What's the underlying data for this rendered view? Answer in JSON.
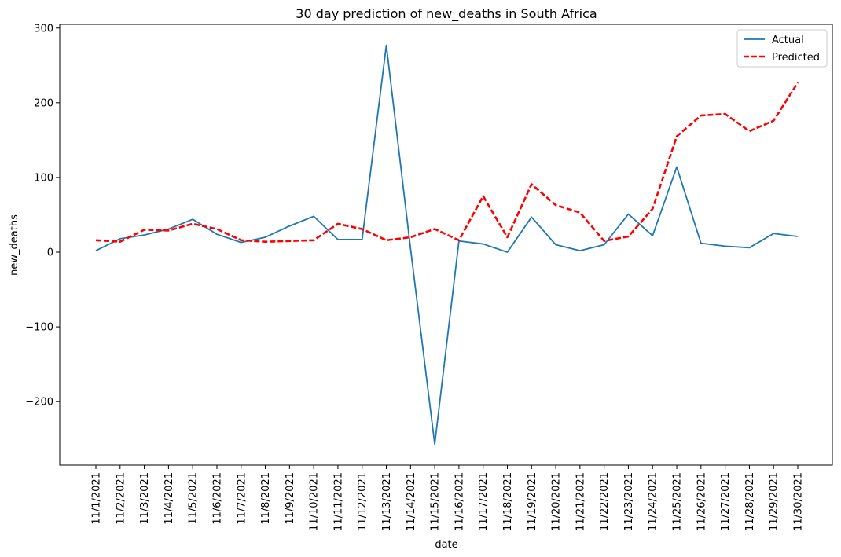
{
  "chart_data": {
    "type": "line",
    "title": "30 day prediction of new_deaths in South Africa",
    "xlabel": "date",
    "ylabel": "new_deaths",
    "ylim": [
      -285,
      305
    ],
    "yticks": [
      -200,
      -100,
      0,
      100,
      200,
      300
    ],
    "ytick_labels": [
      "−200",
      "−100",
      "0",
      "100",
      "200",
      "300"
    ],
    "categories": [
      "11/1/2021",
      "11/2/2021",
      "11/3/2021",
      "11/4/2021",
      "11/5/2021",
      "11/6/2021",
      "11/7/2021",
      "11/8/2021",
      "11/9/2021",
      "11/10/2021",
      "11/11/2021",
      "11/12/2021",
      "11/13/2021",
      "11/14/2021",
      "11/15/2021",
      "11/16/2021",
      "11/17/2021",
      "11/18/2021",
      "11/19/2021",
      "11/20/2021",
      "11/21/2021",
      "11/22/2021",
      "11/23/2021",
      "11/24/2021",
      "11/25/2021",
      "11/26/2021",
      "11/27/2021",
      "11/28/2021",
      "11/29/2021",
      "11/30/2021"
    ],
    "series": [
      {
        "name": "Actual",
        "color": "#1f77b4",
        "style": "solid",
        "values": [
          2,
          18,
          23,
          31,
          44,
          24,
          13,
          20,
          35,
          48,
          17,
          17,
          277,
          5,
          -257,
          15,
          11,
          0,
          47,
          10,
          2,
          10,
          51,
          22,
          114,
          12,
          8,
          6,
          25,
          21
        ]
      },
      {
        "name": "Predicted",
        "color": "#ff0000",
        "style": "dashed",
        "values": [
          16,
          14,
          30,
          29,
          38,
          31,
          16,
          14,
          15,
          16,
          38,
          31,
          16,
          20,
          31,
          16,
          75,
          20,
          91,
          63,
          53,
          15,
          21,
          58,
          155,
          183,
          185,
          162,
          176,
          227
        ]
      }
    ],
    "legend": "top-right"
  }
}
